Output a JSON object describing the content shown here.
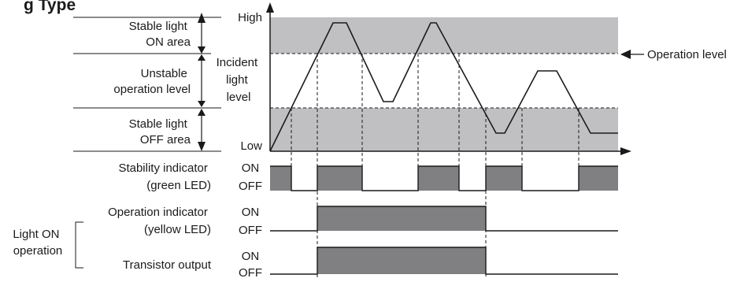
{
  "title_fragment": "g Type",
  "zones": {
    "stable_on": [
      "Stable light",
      "ON area"
    ],
    "unstable": [
      "Unstable",
      "operation level"
    ],
    "stable_off": [
      "Stable light",
      "OFF area"
    ]
  },
  "axis": {
    "high": "High",
    "low": "Low",
    "ylabel": [
      "Incident",
      "light",
      "level"
    ]
  },
  "operation_level_label": "Operation level",
  "signals": {
    "stability": {
      "name": [
        "Stability indicator",
        "(green LED)"
      ],
      "on": "ON",
      "off": "OFF"
    },
    "operation": {
      "name": [
        "Operation indicator",
        "(yellow LED)"
      ],
      "on": "ON",
      "off": "OFF"
    },
    "transistor": {
      "name": [
        "Transistor output"
      ],
      "on": "ON",
      "off": "OFF"
    }
  },
  "group_label": [
    "Light ON",
    "operation"
  ],
  "colors": {
    "band_fill": "#c0c0c3",
    "signal_fill": "#808083",
    "line": "#1a1a1a"
  }
}
